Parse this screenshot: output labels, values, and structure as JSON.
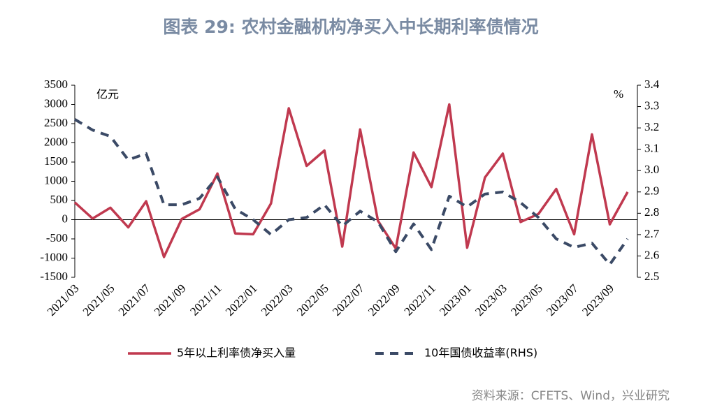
{
  "chart_data": {
    "type": "line",
    "title": "图表 29: 农村金融机构净买入中长期利率债情况",
    "y_unit": "亿元",
    "y2_unit": "%",
    "source": "资料来源：CFETS、Wind，兴业研究",
    "categories": [
      "2021/03",
      null,
      "2021/05",
      null,
      "2021/07",
      null,
      "2021/09",
      null,
      "2021/11",
      null,
      "2022/01",
      null,
      "2022/03",
      null,
      "2022/05",
      null,
      "2022/07",
      null,
      "2022/09",
      null,
      "2022/11",
      null,
      "2023/01",
      null,
      "2023/03",
      null,
      "2023/05",
      null,
      "2023/07",
      null,
      "2023/09",
      null
    ],
    "series": [
      {
        "name": "5年以上利率债净买入量",
        "color": "#c0394f",
        "dash": false,
        "axis": "y",
        "values": [
          450,
          30,
          310,
          -200,
          480,
          -970,
          20,
          270,
          1200,
          -360,
          -380,
          420,
          2900,
          1400,
          1800,
          -700,
          2350,
          -30,
          -750,
          1750,
          850,
          3000,
          -730,
          1100,
          1720,
          -60,
          150,
          800,
          -380,
          2220,
          -120,
          720
        ]
      },
      {
        "name": "10年国债收益率(RHS)",
        "color": "#3b4a66",
        "dash": true,
        "axis": "y2",
        "values": [
          3.24,
          3.19,
          3.16,
          3.05,
          3.08,
          2.84,
          2.84,
          2.87,
          2.97,
          2.82,
          2.77,
          2.7,
          2.77,
          2.78,
          2.84,
          2.74,
          2.81,
          2.76,
          2.62,
          2.75,
          2.63,
          2.88,
          2.83,
          2.89,
          2.9,
          2.85,
          2.78,
          2.68,
          2.64,
          2.66,
          2.56,
          2.68
        ]
      }
    ],
    "ylim": [
      -1500,
      3500
    ],
    "yticks": [
      -1500,
      -1000,
      -500,
      0,
      500,
      1000,
      1500,
      2000,
      2500,
      3000,
      3500
    ],
    "y2lim": [
      2.5,
      3.4
    ],
    "y2ticks": [
      2.5,
      2.6,
      2.7,
      2.8,
      2.9,
      {
        "value": 3.0,
        "label": "3.0"
      },
      3.1,
      3.2,
      3.3,
      3.4
    ],
    "legend": "bottom"
  }
}
